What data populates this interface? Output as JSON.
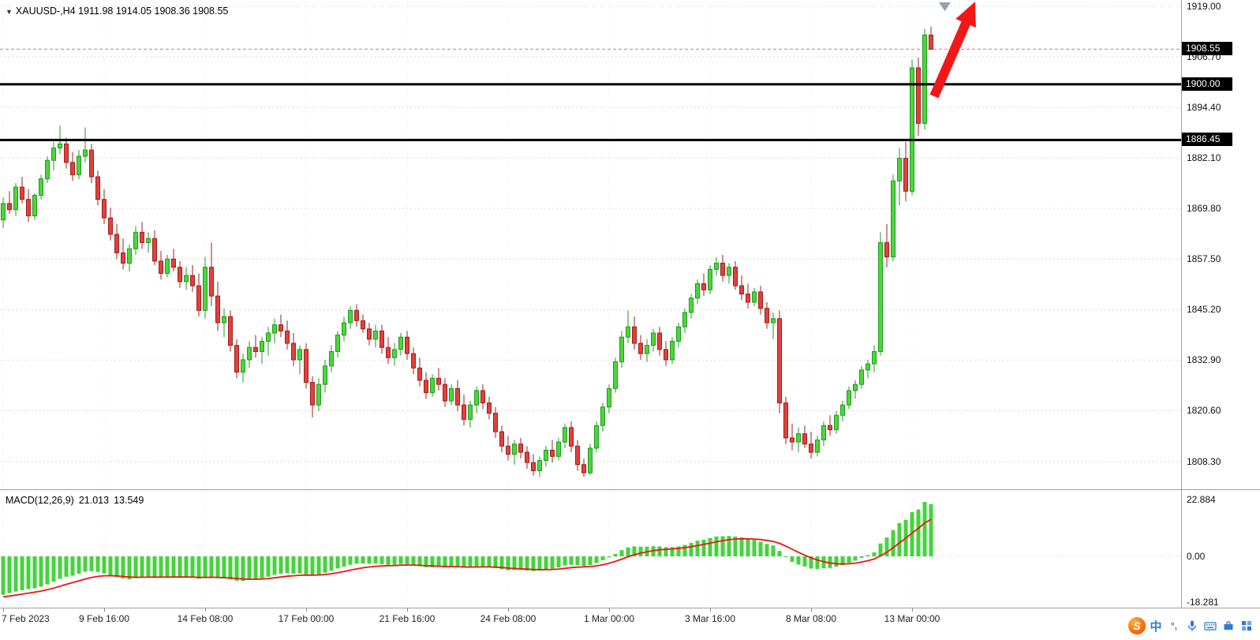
{
  "header": {
    "dropdown_icon": "▼",
    "symbol_period": "XAUUSD-,H4",
    "ohlc": "1911.98 1914.05 1908.36 1908.55"
  },
  "macd": {
    "name": "MACD(12,26,9)",
    "value_main": "21.013",
    "value_signal": "13.549"
  },
  "ime": {
    "logo": "S",
    "mode": "中",
    "punct": "°,"
  },
  "chart_data": [
    {
      "type": "candlestick",
      "title": "XAUUSD- H4",
      "ylim": [
        1801.5,
        1920.5
      ],
      "price_ticks": [
        1919.0,
        1906.7,
        1894.4,
        1882.1,
        1869.8,
        1857.5,
        1845.2,
        1832.9,
        1820.6,
        1808.3
      ],
      "current_price": 1908.55,
      "hlines": [
        {
          "value": 1900.0,
          "label": "1900.00"
        },
        {
          "value": 1886.45,
          "label": "1886.45"
        }
      ],
      "x_labels": [
        {
          "idx": 0,
          "label": "7 Feb 2023"
        },
        {
          "idx": 16,
          "label": "9 Feb 16:00"
        },
        {
          "idx": 32,
          "label": "14 Feb 08:00"
        },
        {
          "idx": 48,
          "label": "17 Feb 00:00"
        },
        {
          "idx": 64,
          "label": "21 Feb 16:00"
        },
        {
          "idx": 80,
          "label": "24 Feb 08:00"
        },
        {
          "idx": 96,
          "label": "1 Mar 00:00"
        },
        {
          "idx": 112,
          "label": "3 Mar 16:00"
        },
        {
          "idx": 128,
          "label": "8 Mar 08:00"
        },
        {
          "idx": 144,
          "label": "13 Mar 00:00"
        }
      ],
      "colors": {
        "bull": "#4cd63c",
        "bull_dark": "#1f9a1f",
        "bear": "#e3403a",
        "bear_dark": "#9e1f1f"
      },
      "candles": [
        [
          1867.0,
          1872.5,
          1865.0,
          1871.0
        ],
        [
          1871.0,
          1874.0,
          1868.5,
          1869.5
        ],
        [
          1869.5,
          1876.0,
          1868.0,
          1875.0
        ],
        [
          1875.0,
          1877.5,
          1871.0,
          1872.0
        ],
        [
          1872.0,
          1874.5,
          1866.5,
          1868.0
        ],
        [
          1868.0,
          1873.5,
          1867.0,
          1873.0
        ],
        [
          1873.0,
          1878.0,
          1872.0,
          1877.0
        ],
        [
          1877.0,
          1882.5,
          1876.0,
          1881.5
        ],
        [
          1881.5,
          1886.0,
          1879.0,
          1884.5
        ],
        [
          1884.5,
          1890.0,
          1883.0,
          1885.5
        ],
        [
          1885.5,
          1887.0,
          1879.5,
          1881.0
        ],
        [
          1881.0,
          1883.5,
          1876.5,
          1878.0
        ],
        [
          1878.0,
          1884.0,
          1877.0,
          1882.5
        ],
        [
          1882.5,
          1889.5,
          1881.0,
          1884.0
        ],
        [
          1884.0,
          1885.5,
          1876.0,
          1877.5
        ],
        [
          1877.5,
          1879.0,
          1870.5,
          1872.0
        ],
        [
          1872.0,
          1874.5,
          1866.0,
          1867.5
        ],
        [
          1867.5,
          1870.0,
          1862.0,
          1863.5
        ],
        [
          1863.5,
          1866.0,
          1857.5,
          1859.0
        ],
        [
          1859.0,
          1862.5,
          1855.0,
          1856.5
        ],
        [
          1856.5,
          1861.0,
          1854.5,
          1860.0
        ],
        [
          1860.0,
          1865.5,
          1858.5,
          1864.0
        ],
        [
          1864.0,
          1866.5,
          1860.0,
          1861.5
        ],
        [
          1861.5,
          1864.0,
          1859.0,
          1862.5
        ],
        [
          1862.5,
          1864.5,
          1856.0,
          1857.0
        ],
        [
          1857.0,
          1859.5,
          1852.5,
          1854.0
        ],
        [
          1854.0,
          1858.5,
          1853.0,
          1857.5
        ],
        [
          1857.5,
          1860.0,
          1854.5,
          1855.5
        ],
        [
          1855.5,
          1857.0,
          1850.5,
          1852.0
        ],
        [
          1852.0,
          1855.5,
          1850.0,
          1853.5
        ],
        [
          1853.5,
          1856.0,
          1849.5,
          1851.0
        ],
        [
          1851.0,
          1854.0,
          1843.5,
          1845.0
        ],
        [
          1845.0,
          1858.0,
          1843.0,
          1855.5
        ],
        [
          1855.5,
          1861.5,
          1846.0,
          1848.5
        ],
        [
          1848.5,
          1852.0,
          1840.0,
          1842.0
        ],
        [
          1842.0,
          1845.5,
          1838.5,
          1843.5
        ],
        [
          1843.5,
          1845.0,
          1835.0,
          1836.5
        ],
        [
          1836.5,
          1838.0,
          1828.5,
          1830.0
        ],
        [
          1830.0,
          1834.5,
          1827.5,
          1833.0
        ],
        [
          1833.0,
          1837.5,
          1831.0,
          1836.0
        ],
        [
          1836.0,
          1839.0,
          1833.5,
          1835.0
        ],
        [
          1835.0,
          1838.5,
          1832.0,
          1837.5
        ],
        [
          1837.5,
          1841.0,
          1834.0,
          1839.5
        ],
        [
          1839.5,
          1843.0,
          1837.0,
          1841.5
        ],
        [
          1841.5,
          1844.0,
          1838.5,
          1840.0
        ],
        [
          1840.0,
          1842.5,
          1835.5,
          1837.0
        ],
        [
          1837.0,
          1839.5,
          1831.5,
          1833.0
        ],
        [
          1833.0,
          1836.5,
          1829.5,
          1835.5
        ],
        [
          1835.5,
          1837.0,
          1826.0,
          1827.5
        ],
        [
          1827.5,
          1829.0,
          1819.0,
          1822.0
        ],
        [
          1822.0,
          1828.5,
          1820.5,
          1827.0
        ],
        [
          1827.0,
          1833.0,
          1825.0,
          1831.5
        ],
        [
          1831.5,
          1836.5,
          1830.0,
          1835.0
        ],
        [
          1835.0,
          1840.0,
          1833.5,
          1839.0
        ],
        [
          1839.0,
          1843.5,
          1837.5,
          1842.0
        ],
        [
          1842.0,
          1846.0,
          1840.5,
          1845.0
        ],
        [
          1845.0,
          1846.5,
          1841.0,
          1842.5
        ],
        [
          1842.5,
          1844.0,
          1839.5,
          1840.5
        ],
        [
          1840.5,
          1842.0,
          1836.5,
          1838.0
        ],
        [
          1838.0,
          1841.5,
          1836.0,
          1840.0
        ],
        [
          1840.0,
          1841.5,
          1834.5,
          1836.0
        ],
        [
          1836.0,
          1838.5,
          1832.0,
          1833.5
        ],
        [
          1833.5,
          1837.0,
          1831.5,
          1835.5
        ],
        [
          1835.5,
          1839.5,
          1834.0,
          1838.5
        ],
        [
          1838.5,
          1840.0,
          1833.0,
          1834.5
        ],
        [
          1834.5,
          1836.0,
          1829.5,
          1831.0
        ],
        [
          1831.0,
          1833.5,
          1826.5,
          1828.0
        ],
        [
          1828.0,
          1830.0,
          1823.5,
          1825.0
        ],
        [
          1825.0,
          1829.5,
          1824.0,
          1828.5
        ],
        [
          1828.5,
          1831.0,
          1825.5,
          1827.0
        ],
        [
          1827.0,
          1828.5,
          1821.5,
          1823.0
        ],
        [
          1823.0,
          1827.0,
          1822.0,
          1826.0
        ],
        [
          1826.0,
          1828.0,
          1820.5,
          1822.0
        ],
        [
          1822.0,
          1824.5,
          1817.0,
          1818.5
        ],
        [
          1818.5,
          1823.0,
          1816.5,
          1822.0
        ],
        [
          1822.0,
          1826.5,
          1820.0,
          1825.5
        ],
        [
          1825.5,
          1827.0,
          1821.0,
          1822.5
        ],
        [
          1822.5,
          1824.0,
          1818.5,
          1820.0
        ],
        [
          1820.0,
          1821.5,
          1814.0,
          1815.5
        ],
        [
          1815.5,
          1817.0,
          1810.5,
          1812.0
        ],
        [
          1812.0,
          1814.5,
          1808.5,
          1810.0
        ],
        [
          1810.0,
          1813.5,
          1807.5,
          1812.5
        ],
        [
          1812.5,
          1814.0,
          1809.0,
          1810.5
        ],
        [
          1810.5,
          1812.0,
          1806.5,
          1808.0
        ],
        [
          1808.0,
          1810.0,
          1804.8,
          1806.0
        ],
        [
          1806.0,
          1809.5,
          1804.5,
          1808.5
        ],
        [
          1808.5,
          1812.0,
          1807.0,
          1811.0
        ],
        [
          1811.0,
          1813.5,
          1808.0,
          1809.5
        ],
        [
          1809.5,
          1814.0,
          1808.5,
          1813.0
        ],
        [
          1813.0,
          1817.5,
          1811.5,
          1816.5
        ],
        [
          1816.5,
          1818.0,
          1810.5,
          1812.0
        ],
        [
          1812.0,
          1813.5,
          1806.0,
          1807.5
        ],
        [
          1807.5,
          1809.0,
          1804.5,
          1805.5
        ],
        [
          1805.5,
          1812.5,
          1805.0,
          1811.5
        ],
        [
          1811.5,
          1818.0,
          1810.5,
          1817.0
        ],
        [
          1817.0,
          1822.5,
          1815.5,
          1821.5
        ],
        [
          1821.5,
          1827.0,
          1820.0,
          1826.0
        ],
        [
          1826.0,
          1833.5,
          1825.0,
          1832.5
        ],
        [
          1832.5,
          1840.0,
          1831.0,
          1838.5
        ],
        [
          1838.5,
          1845.0,
          1837.0,
          1841.0
        ],
        [
          1841.0,
          1843.5,
          1835.5,
          1837.0
        ],
        [
          1837.0,
          1839.0,
          1833.0,
          1834.5
        ],
        [
          1834.5,
          1838.0,
          1832.5,
          1836.5
        ],
        [
          1836.5,
          1840.5,
          1835.0,
          1839.5
        ],
        [
          1839.5,
          1841.0,
          1834.0,
          1835.5
        ],
        [
          1835.5,
          1837.5,
          1831.5,
          1833.0
        ],
        [
          1833.0,
          1838.5,
          1832.0,
          1837.5
        ],
        [
          1837.5,
          1842.0,
          1836.0,
          1841.0
        ],
        [
          1841.0,
          1845.5,
          1839.5,
          1844.5
        ],
        [
          1844.5,
          1849.0,
          1843.0,
          1848.0
        ],
        [
          1848.0,
          1852.5,
          1846.5,
          1851.5
        ],
        [
          1851.5,
          1854.0,
          1848.5,
          1850.0
        ],
        [
          1850.0,
          1856.0,
          1849.0,
          1855.0
        ],
        [
          1855.0,
          1858.0,
          1853.5,
          1856.5
        ],
        [
          1856.5,
          1858.5,
          1852.0,
          1853.5
        ],
        [
          1853.5,
          1856.5,
          1851.5,
          1855.5
        ],
        [
          1855.5,
          1857.0,
          1850.0,
          1851.0
        ],
        [
          1851.0,
          1853.5,
          1847.5,
          1849.0
        ],
        [
          1849.0,
          1851.5,
          1845.5,
          1847.0
        ],
        [
          1847.0,
          1850.5,
          1846.0,
          1849.5
        ],
        [
          1849.5,
          1851.0,
          1844.0,
          1845.5
        ],
        [
          1845.5,
          1847.0,
          1840.5,
          1842.0
        ],
        [
          1842.0,
          1844.5,
          1838.0,
          1843.0
        ],
        [
          1843.0,
          1845.0,
          1820.0,
          1822.5
        ],
        [
          1822.5,
          1824.0,
          1812.5,
          1814.0
        ],
        [
          1814.0,
          1817.5,
          1811.0,
          1813.0
        ],
        [
          1813.0,
          1816.5,
          1810.5,
          1815.0
        ],
        [
          1815.0,
          1817.0,
          1811.5,
          1812.5
        ],
        [
          1812.5,
          1815.5,
          1809.0,
          1810.5
        ],
        [
          1810.5,
          1814.5,
          1809.5,
          1813.5
        ],
        [
          1813.5,
          1818.0,
          1812.0,
          1817.0
        ],
        [
          1817.0,
          1819.5,
          1814.5,
          1816.0
        ],
        [
          1816.0,
          1820.5,
          1815.0,
          1819.5
        ],
        [
          1819.5,
          1823.0,
          1818.0,
          1822.0
        ],
        [
          1822.0,
          1826.5,
          1821.0,
          1825.5
        ],
        [
          1825.5,
          1828.0,
          1823.5,
          1827.0
        ],
        [
          1827.0,
          1831.5,
          1826.0,
          1830.5
        ],
        [
          1830.5,
          1833.0,
          1828.5,
          1832.0
        ],
        [
          1832.0,
          1836.5,
          1830.0,
          1835.0
        ],
        [
          1835.0,
          1864.0,
          1834.0,
          1861.5
        ],
        [
          1861.5,
          1866.0,
          1855.5,
          1858.0
        ],
        [
          1858.0,
          1878.0,
          1857.0,
          1876.5
        ],
        [
          1876.5,
          1884.5,
          1870.5,
          1882.0
        ],
        [
          1882.0,
          1886.0,
          1871.5,
          1874.0
        ],
        [
          1874.0,
          1906.0,
          1873.0,
          1904.0
        ],
        [
          1904.0,
          1906.5,
          1887.5,
          1890.5
        ],
        [
          1890.5,
          1913.5,
          1889.0,
          1912.0
        ],
        [
          1911.98,
          1914.05,
          1908.36,
          1908.55
        ]
      ]
    },
    {
      "type": "bar",
      "name": "MACD(12,26,9)",
      "values_shown": {
        "macd": 21.013,
        "signal": 13.549
      },
      "ticks": [
        22.884,
        0.0,
        -18.281
      ],
      "ylim": [
        -22,
        27
      ],
      "signal_seed": -16.5,
      "colors": {
        "histogram": "#45d33c",
        "signal": "#f01414"
      },
      "macd": [
        -15.5,
        -14.8,
        -14.2,
        -13.6,
        -13.2,
        -12.9,
        -12.2,
        -11.3,
        -10.2,
        -9.0,
        -8.2,
        -7.8,
        -7.0,
        -6.2,
        -6.0,
        -6.3,
        -6.9,
        -7.6,
        -8.3,
        -8.9,
        -9.2,
        -8.8,
        -8.5,
        -8.2,
        -8.2,
        -8.4,
        -8.3,
        -8.2,
        -8.4,
        -8.3,
        -8.5,
        -9.0,
        -8.4,
        -8.2,
        -8.8,
        -8.9,
        -9.3,
        -9.8,
        -9.9,
        -9.5,
        -9.2,
        -8.8,
        -8.2,
        -7.5,
        -7.0,
        -6.8,
        -7.0,
        -6.9,
        -7.2,
        -7.6,
        -7.3,
        -6.6,
        -5.8,
        -4.9,
        -4.1,
        -3.4,
        -3.0,
        -2.9,
        -3.0,
        -2.9,
        -3.1,
        -3.4,
        -3.4,
        -3.1,
        -3.2,
        -3.6,
        -4.0,
        -4.4,
        -4.4,
        -4.3,
        -4.5,
        -4.3,
        -4.3,
        -4.6,
        -4.6,
        -4.2,
        -4.1,
        -4.3,
        -4.7,
        -5.2,
        -5.6,
        -5.5,
        -5.5,
        -5.7,
        -5.9,
        -5.7,
        -5.2,
        -5.0,
        -4.5,
        -3.7,
        -3.4,
        -3.6,
        -3.9,
        -3.5,
        -2.7,
        -1.6,
        -0.4,
        1.0,
        2.5,
        3.6,
        4.0,
        3.9,
        3.9,
        4.1,
        4.0,
        3.7,
        3.7,
        4.0,
        4.6,
        5.4,
        6.3,
        6.7,
        7.4,
        8.0,
        8.1,
        8.2,
        8.0,
        7.6,
        7.0,
        6.6,
        5.9,
        5.0,
        4.4,
        2.2,
        -0.3,
        -2.2,
        -3.3,
        -4.1,
        -4.9,
        -5.1,
        -4.8,
        -4.7,
        -4.2,
        -3.5,
        -2.6,
        -1.7,
        -0.6,
        0.5,
        1.6,
        5.2,
        7.6,
        10.6,
        13.4,
        14.7,
        17.8,
        18.9,
        21.9,
        21.013
      ]
    }
  ]
}
